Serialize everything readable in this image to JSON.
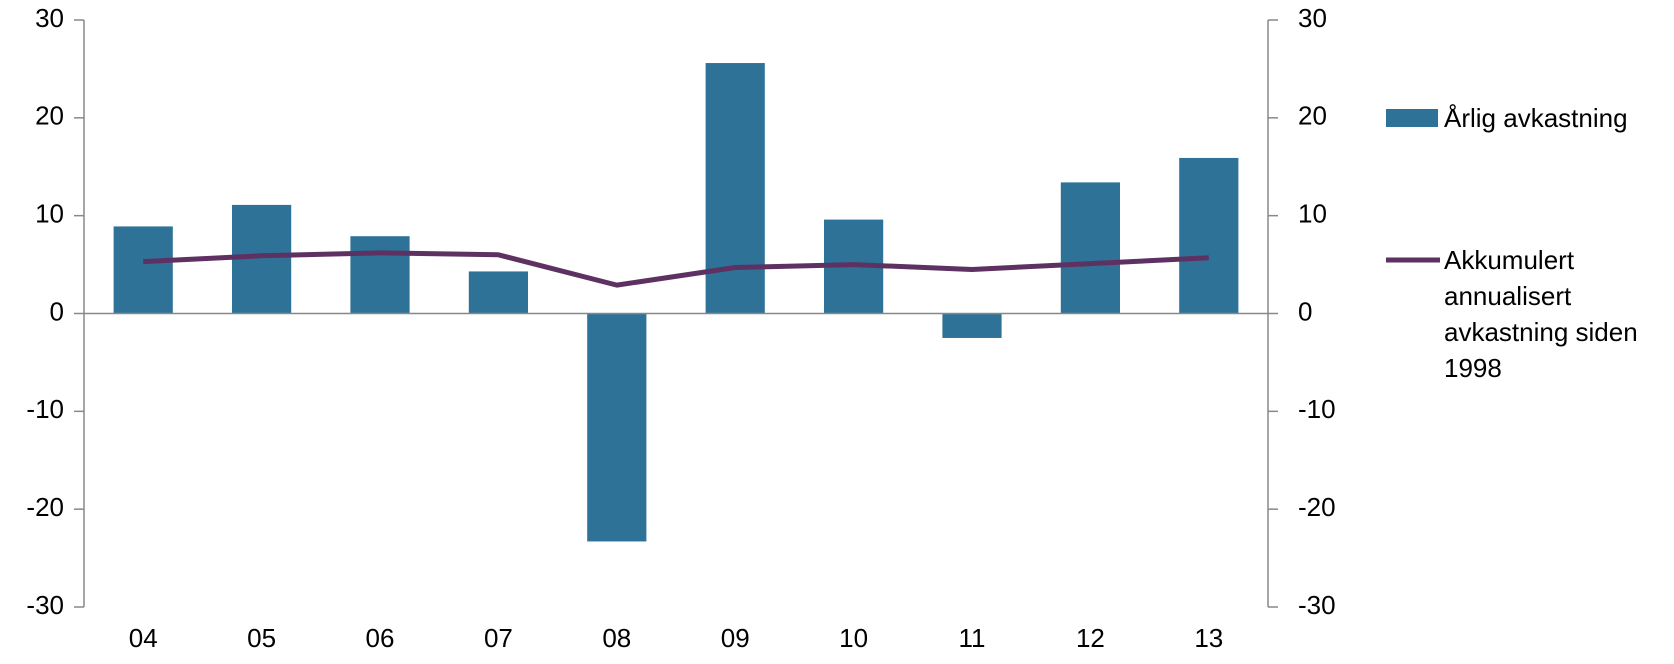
{
  "chart_data": {
    "type": "bar",
    "categories": [
      "04",
      "05",
      "06",
      "07",
      "08",
      "09",
      "10",
      "11",
      "12",
      "13"
    ],
    "series": [
      {
        "name": "Årlig avkastning",
        "type": "bar",
        "color": "#2e7298",
        "values": [
          8.9,
          11.1,
          7.9,
          4.3,
          -23.3,
          25.6,
          9.6,
          -2.5,
          13.4,
          15.9
        ]
      },
      {
        "name": "Akkumulert annualisert avkastning siden 1998",
        "type": "line",
        "color": "#5e3163",
        "values": [
          5.3,
          5.9,
          6.2,
          6.0,
          2.9,
          4.7,
          5.0,
          4.5,
          5.1,
          5.7
        ]
      }
    ],
    "ylim": [
      -30,
      30
    ],
    "yticks": [
      -30,
      -20,
      -10,
      0,
      10,
      20,
      30
    ],
    "y2lim": [
      -30,
      30
    ],
    "y2ticks": [
      -30,
      -20,
      -10,
      0,
      10,
      20,
      30
    ],
    "legend": "right"
  }
}
